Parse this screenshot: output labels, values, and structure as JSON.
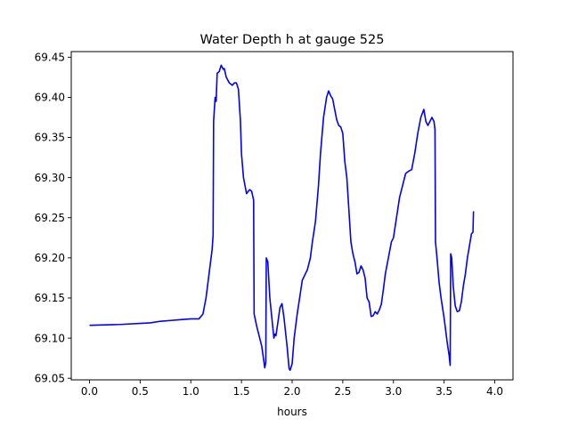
{
  "chart_data": {
    "type": "line",
    "title": "Water Depth h at gauge 525",
    "xlabel": "hours",
    "ylabel": "",
    "xlim": [
      -0.18,
      4.18
    ],
    "ylim": [
      69.048,
      69.457
    ],
    "x_ticks": [
      {
        "value": 0.0,
        "label": "0.0"
      },
      {
        "value": 0.5,
        "label": "0.5"
      },
      {
        "value": 1.0,
        "label": "1.0"
      },
      {
        "value": 1.5,
        "label": "1.5"
      },
      {
        "value": 2.0,
        "label": "2.0"
      },
      {
        "value": 2.5,
        "label": "2.5"
      },
      {
        "value": 3.0,
        "label": "3.0"
      },
      {
        "value": 3.5,
        "label": "3.5"
      },
      {
        "value": 4.0,
        "label": "4.0"
      }
    ],
    "y_ticks": [
      {
        "value": 69.05,
        "label": "69.05"
      },
      {
        "value": 69.1,
        "label": "69.10"
      },
      {
        "value": 69.15,
        "label": "69.15"
      },
      {
        "value": 69.2,
        "label": "69.20"
      },
      {
        "value": 69.25,
        "label": "69.25"
      },
      {
        "value": 69.3,
        "label": "69.30"
      },
      {
        "value": 69.35,
        "label": "69.35"
      },
      {
        "value": 69.4,
        "label": "69.40"
      },
      {
        "value": 69.45,
        "label": "69.45"
      }
    ],
    "grid": false,
    "legend": "none",
    "series": [
      {
        "color": "#0000ff",
        "points": [
          [
            0.0,
            69.116
          ],
          [
            0.3,
            69.117
          ],
          [
            0.6,
            69.119
          ],
          [
            0.7,
            69.121
          ],
          [
            0.8,
            69.122
          ],
          [
            0.9,
            69.123
          ],
          [
            1.0,
            69.124
          ],
          [
            1.08,
            69.124
          ],
          [
            1.12,
            69.13
          ],
          [
            1.15,
            69.15
          ],
          [
            1.18,
            69.18
          ],
          [
            1.21,
            69.21
          ],
          [
            1.22,
            69.228
          ],
          [
            1.225,
            69.37
          ],
          [
            1.24,
            69.4
          ],
          [
            1.25,
            69.395
          ],
          [
            1.26,
            69.43
          ],
          [
            1.28,
            69.432
          ],
          [
            1.3,
            69.44
          ],
          [
            1.32,
            69.435
          ],
          [
            1.33,
            69.436
          ],
          [
            1.35,
            69.425
          ],
          [
            1.38,
            69.418
          ],
          [
            1.41,
            69.415
          ],
          [
            1.43,
            69.418
          ],
          [
            1.45,
            69.418
          ],
          [
            1.47,
            69.41
          ],
          [
            1.49,
            69.37
          ],
          [
            1.5,
            69.33
          ],
          [
            1.52,
            69.3
          ],
          [
            1.55,
            69.28
          ],
          [
            1.58,
            69.285
          ],
          [
            1.6,
            69.283
          ],
          [
            1.62,
            69.272
          ],
          [
            1.625,
            69.13
          ],
          [
            1.65,
            69.115
          ],
          [
            1.7,
            69.09
          ],
          [
            1.73,
            69.063
          ],
          [
            1.74,
            69.07
          ],
          [
            1.745,
            69.2
          ],
          [
            1.76,
            69.195
          ],
          [
            1.78,
            69.15
          ],
          [
            1.8,
            69.125
          ],
          [
            1.82,
            69.1
          ],
          [
            1.83,
            69.105
          ],
          [
            1.84,
            69.103
          ],
          [
            1.86,
            69.12
          ],
          [
            1.88,
            69.138
          ],
          [
            1.9,
            69.143
          ],
          [
            1.92,
            69.125
          ],
          [
            1.95,
            69.09
          ],
          [
            1.97,
            69.062
          ],
          [
            1.98,
            69.06
          ],
          [
            2.0,
            69.068
          ],
          [
            2.02,
            69.1
          ],
          [
            2.05,
            69.13
          ],
          [
            2.08,
            69.155
          ],
          [
            2.1,
            69.172
          ],
          [
            2.13,
            69.18
          ],
          [
            2.15,
            69.185
          ],
          [
            2.18,
            69.2
          ],
          [
            2.2,
            69.22
          ],
          [
            2.23,
            69.245
          ],
          [
            2.26,
            69.29
          ],
          [
            2.28,
            69.33
          ],
          [
            2.31,
            69.375
          ],
          [
            2.34,
            69.4
          ],
          [
            2.36,
            69.408
          ],
          [
            2.38,
            69.402
          ],
          [
            2.4,
            69.398
          ],
          [
            2.42,
            69.385
          ],
          [
            2.44,
            69.372
          ],
          [
            2.46,
            69.365
          ],
          [
            2.48,
            69.363
          ],
          [
            2.5,
            69.355
          ],
          [
            2.52,
            69.32
          ],
          [
            2.54,
            69.3
          ],
          [
            2.56,
            69.26
          ],
          [
            2.58,
            69.22
          ],
          [
            2.6,
            69.205
          ],
          [
            2.61,
            69.2
          ],
          [
            2.62,
            69.195
          ],
          [
            2.64,
            69.18
          ],
          [
            2.66,
            69.182
          ],
          [
            2.68,
            69.19
          ],
          [
            2.7,
            69.185
          ],
          [
            2.72,
            69.175
          ],
          [
            2.74,
            69.15
          ],
          [
            2.76,
            69.145
          ],
          [
            2.78,
            69.127
          ],
          [
            2.8,
            69.128
          ],
          [
            2.82,
            69.133
          ],
          [
            2.84,
            69.13
          ],
          [
            2.86,
            69.135
          ],
          [
            2.88,
            69.142
          ],
          [
            2.9,
            69.16
          ],
          [
            2.92,
            69.18
          ],
          [
            2.95,
            69.2
          ],
          [
            2.98,
            69.22
          ],
          [
            3.0,
            69.225
          ],
          [
            3.03,
            69.25
          ],
          [
            3.06,
            69.275
          ],
          [
            3.1,
            69.295
          ],
          [
            3.12,
            69.305
          ],
          [
            3.15,
            69.308
          ],
          [
            3.18,
            69.31
          ],
          [
            3.21,
            69.33
          ],
          [
            3.24,
            69.355
          ],
          [
            3.27,
            69.375
          ],
          [
            3.3,
            69.385
          ],
          [
            3.32,
            69.37
          ],
          [
            3.34,
            69.365
          ],
          [
            3.36,
            69.37
          ],
          [
            3.38,
            69.375
          ],
          [
            3.4,
            69.37
          ],
          [
            3.41,
            69.36
          ],
          [
            3.415,
            69.22
          ],
          [
            3.43,
            69.2
          ],
          [
            3.45,
            69.17
          ],
          [
            3.47,
            69.15
          ],
          [
            3.5,
            69.125
          ],
          [
            3.53,
            69.095
          ],
          [
            3.55,
            69.078
          ],
          [
            3.56,
            69.066
          ],
          [
            3.565,
            69.205
          ],
          [
            3.575,
            69.2
          ],
          [
            3.59,
            69.165
          ],
          [
            3.61,
            69.14
          ],
          [
            3.63,
            69.133
          ],
          [
            3.65,
            69.134
          ],
          [
            3.67,
            69.145
          ],
          [
            3.69,
            69.165
          ],
          [
            3.71,
            69.18
          ],
          [
            3.73,
            69.2
          ],
          [
            3.75,
            69.215
          ],
          [
            3.77,
            69.23
          ],
          [
            3.785,
            69.232
          ],
          [
            3.79,
            69.258
          ]
        ]
      }
    ]
  }
}
